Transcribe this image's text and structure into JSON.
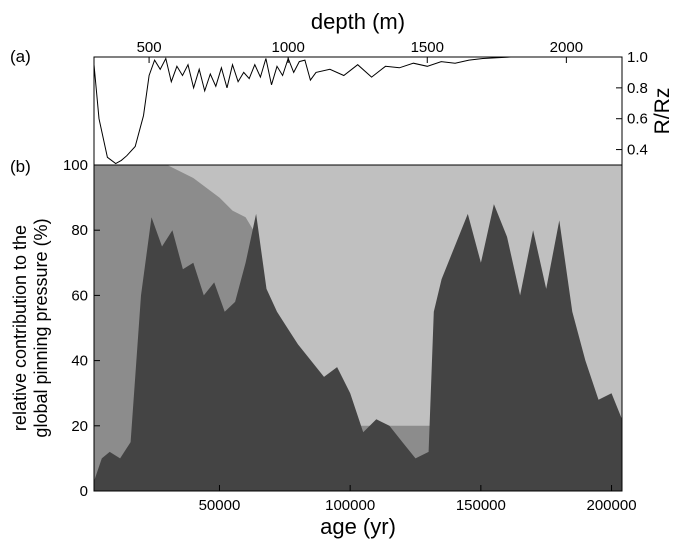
{
  "chart_data": [
    {
      "type": "line",
      "panel_label": "(a)",
      "xlabel": "depth (m)",
      "ylabel": "R/Rz",
      "x_ticks": [
        "500",
        "1000",
        "1500",
        "2000"
      ],
      "y_ticks": [
        "0.4",
        "0.6",
        "0.8",
        "1.0"
      ],
      "xlim": [
        302,
        2200
      ],
      "ylim": [
        0.3,
        1.0
      ],
      "series": [
        {
          "x": [
            302,
            320,
            350,
            380,
            400,
            420,
            450,
            480,
            500,
            520,
            540,
            560,
            580,
            600,
            620,
            640,
            660,
            680,
            700,
            720,
            740,
            760,
            780,
            800,
            820,
            840,
            860,
            880,
            900,
            920,
            940,
            960,
            980,
            1000,
            1020,
            1040,
            1060,
            1080,
            1100,
            1150,
            1200,
            1250,
            1300,
            1350,
            1400,
            1450,
            1500,
            1550,
            1600,
            1650,
            1700,
            1750,
            1800,
            1900,
            2000,
            2100,
            2200
          ],
          "y": [
            0.95,
            0.6,
            0.35,
            0.31,
            0.33,
            0.36,
            0.42,
            0.62,
            0.88,
            0.98,
            0.92,
            0.99,
            0.84,
            0.94,
            0.88,
            0.95,
            0.8,
            0.92,
            0.78,
            0.89,
            0.81,
            0.93,
            0.8,
            0.95,
            0.84,
            0.9,
            0.86,
            0.95,
            0.87,
            0.99,
            0.82,
            0.94,
            0.88,
            0.99,
            0.9,
            0.97,
            0.98,
            0.85,
            0.9,
            0.92,
            0.88,
            0.95,
            0.87,
            0.94,
            0.93,
            0.96,
            0.94,
            0.97,
            0.96,
            0.98,
            0.99,
            0.995,
            1.0,
            1.0,
            1.0,
            1.0,
            1.0
          ]
        }
      ]
    },
    {
      "type": "area",
      "panel_label": "(b)",
      "xlabel": "age (yr)",
      "ylabel": "relative contribution to the global pinning pressure (%)",
      "ylabel_lines": [
        "relative contribution to the",
        "global pinning pressure (%)"
      ],
      "x_ticks": [
        "50000",
        "100000",
        "150000",
        "200000"
      ],
      "y_ticks": [
        "0",
        "20",
        "40",
        "60",
        "80",
        "100"
      ],
      "xlim": [
        2000,
        204000
      ],
      "ylim": [
        0,
        100
      ],
      "series": [
        {
          "x": [
            2000,
            10000,
            18000,
            22000,
            30000,
            40000,
            50000,
            55000,
            60000,
            63000,
            66000,
            68000,
            70000,
            75000,
            200000,
            204000
          ],
          "y": [
            100,
            100,
            100,
            100,
            100,
            96,
            90,
            86,
            84,
            80,
            60,
            40,
            30,
            20,
            20,
            20
          ]
        },
        {
          "x": [
            2000,
            5000,
            8000,
            12000,
            16000,
            20000,
            24000,
            28000,
            32000,
            36000,
            40000,
            44000,
            48000,
            52000,
            56000,
            60000,
            64000,
            68000,
            72000,
            76000,
            80000,
            85000,
            90000,
            95000,
            100000,
            105000,
            110000,
            115000,
            120000,
            125000,
            130000,
            132000,
            135000,
            140000,
            145000,
            150000,
            155000,
            160000,
            165000,
            170000,
            175000,
            180000,
            185000,
            190000,
            195000,
            200000,
            204000
          ],
          "y": [
            3,
            10,
            12,
            10,
            15,
            60,
            84,
            75,
            80,
            68,
            70,
            60,
            64,
            55,
            58,
            70,
            85,
            62,
            55,
            50,
            45,
            40,
            35,
            38,
            30,
            18,
            22,
            20,
            15,
            10,
            12,
            55,
            65,
            75,
            85,
            70,
            88,
            78,
            60,
            80,
            62,
            83,
            55,
            40,
            28,
            30,
            22
          ]
        }
      ]
    }
  ]
}
